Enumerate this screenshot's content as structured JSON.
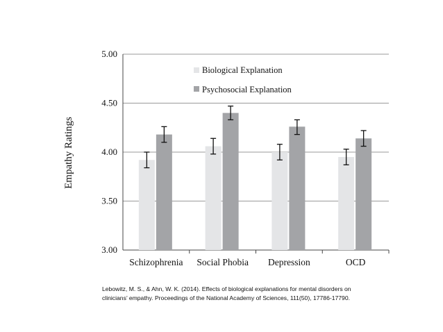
{
  "chart_data": {
    "type": "bar",
    "title": "",
    "xlabel": "",
    "ylabel": "Empathy Ratings",
    "ylim": [
      3.0,
      5.0
    ],
    "yticks": [
      "3.00",
      "3.50",
      "4.00",
      "4.50",
      "5.00"
    ],
    "ytick_values": [
      3.0,
      3.5,
      4.0,
      4.5,
      5.0
    ],
    "grid": true,
    "legend_position": "top-center",
    "categories": [
      "Schizophrenia",
      "Social Phobia",
      "Depression",
      "OCD"
    ],
    "series": [
      {
        "name": "Biological Explanation",
        "color": "#e4e5e7",
        "values": [
          3.92,
          4.06,
          4.0,
          3.95
        ],
        "error_low": [
          3.84,
          3.98,
          3.92,
          3.87
        ],
        "error_high": [
          4.0,
          4.14,
          4.08,
          4.03
        ]
      },
      {
        "name": "Psychosocial Explanation",
        "color": "#a3a4a7",
        "values": [
          4.18,
          4.4,
          4.26,
          4.14
        ],
        "error_low": [
          4.1,
          4.33,
          4.18,
          4.06
        ],
        "error_high": [
          4.26,
          4.47,
          4.33,
          4.22
        ]
      }
    ]
  },
  "citation": {
    "line1": "Lebowitz, M. S., & Ahn, W. K. (2014). Effects of biological explanations for mental disorders on",
    "line2": "clinicians’ empathy. Proceedings of the National Academy of Sciences, 111(50), 17786-17790."
  },
  "colors": {
    "grid": "#999999",
    "axis": "#444444",
    "text": "#111111",
    "errorbar": "#111111"
  }
}
